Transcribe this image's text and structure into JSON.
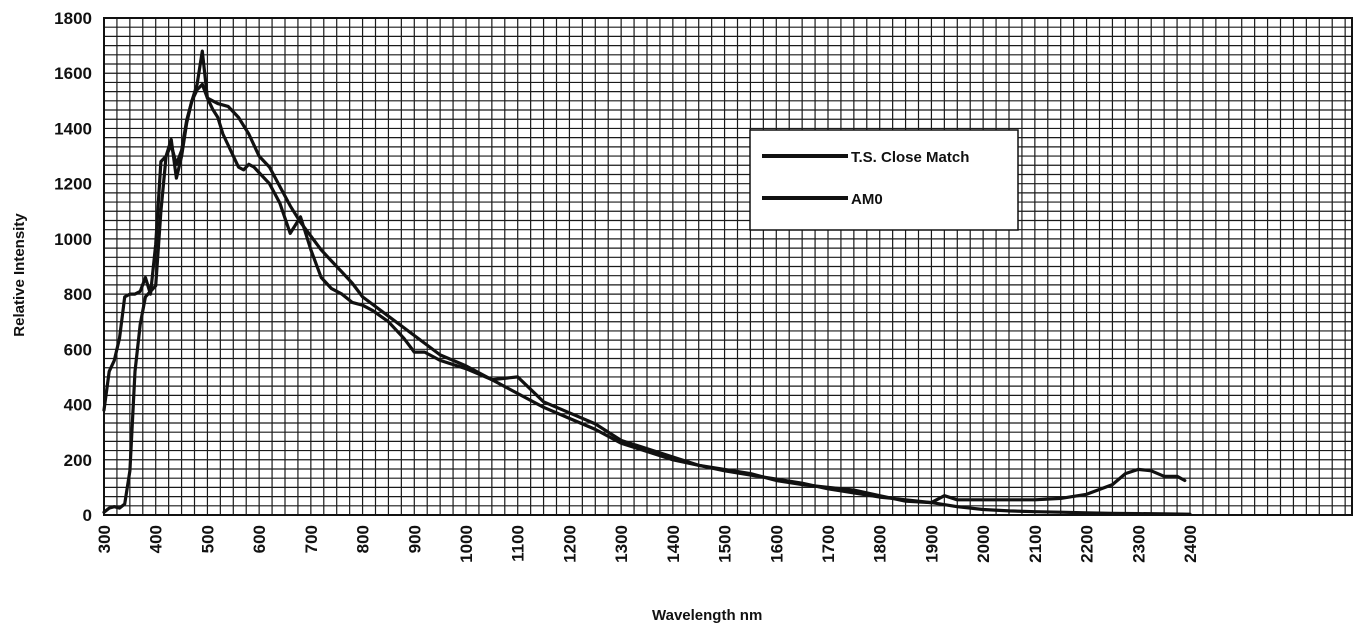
{
  "chart_data": {
    "type": "line",
    "xlabel": "Wavelength nm",
    "ylabel": "Relative Intensity",
    "xlim": [
      300,
      2400
    ],
    "ylim": [
      0,
      1800
    ],
    "x_ticks": [
      "300",
      "400",
      "500",
      "600",
      "700",
      "800",
      "900",
      "1000",
      "1100",
      "1200",
      "1300",
      "1400",
      "1500",
      "1600",
      "1700",
      "1800",
      "1900",
      "2000",
      "2100",
      "2200",
      "2300",
      "2400"
    ],
    "y_ticks": [
      "0",
      "200",
      "400",
      "600",
      "800",
      "1000",
      "1200",
      "1400",
      "1600",
      "1800"
    ],
    "grid": true,
    "legend_position": "top-right",
    "series": [
      {
        "name": "T.S. Close Match",
        "color": "#111111",
        "points": [
          [
            300,
            380
          ],
          [
            310,
            520
          ],
          [
            320,
            560
          ],
          [
            330,
            640
          ],
          [
            340,
            790
          ],
          [
            350,
            800
          ],
          [
            360,
            800
          ],
          [
            370,
            810
          ],
          [
            380,
            860
          ],
          [
            390,
            800
          ],
          [
            400,
            980
          ],
          [
            410,
            1280
          ],
          [
            420,
            1300
          ],
          [
            430,
            1360
          ],
          [
            440,
            1220
          ],
          [
            450,
            1300
          ],
          [
            460,
            1420
          ],
          [
            470,
            1500
          ],
          [
            480,
            1560
          ],
          [
            490,
            1680
          ],
          [
            500,
            1510
          ],
          [
            510,
            1470
          ],
          [
            520,
            1440
          ],
          [
            530,
            1380
          ],
          [
            540,
            1340
          ],
          [
            550,
            1300
          ],
          [
            560,
            1260
          ],
          [
            570,
            1250
          ],
          [
            580,
            1270
          ],
          [
            590,
            1260
          ],
          [
            600,
            1240
          ],
          [
            620,
            1200
          ],
          [
            640,
            1130
          ],
          [
            660,
            1020
          ],
          [
            680,
            1080
          ],
          [
            700,
            960
          ],
          [
            720,
            860
          ],
          [
            740,
            820
          ],
          [
            760,
            800
          ],
          [
            780,
            770
          ],
          [
            800,
            760
          ],
          [
            820,
            740
          ],
          [
            850,
            700
          ],
          [
            880,
            640
          ],
          [
            900,
            590
          ],
          [
            920,
            590
          ],
          [
            950,
            560
          ],
          [
            1000,
            530
          ],
          [
            1050,
            490
          ],
          [
            1100,
            500
          ],
          [
            1150,
            410
          ],
          [
            1200,
            370
          ],
          [
            1250,
            330
          ],
          [
            1300,
            270
          ],
          [
            1350,
            240
          ],
          [
            1400,
            210
          ],
          [
            1450,
            180
          ],
          [
            1500,
            165
          ],
          [
            1550,
            150
          ],
          [
            1600,
            125
          ],
          [
            1650,
            110
          ],
          [
            1700,
            100
          ],
          [
            1750,
            90
          ],
          [
            1800,
            70
          ],
          [
            1850,
            50
          ],
          [
            1900,
            45
          ],
          [
            1925,
            70
          ],
          [
            1950,
            55
          ],
          [
            2000,
            55
          ],
          [
            2050,
            55
          ],
          [
            2100,
            55
          ],
          [
            2150,
            60
          ],
          [
            2200,
            75
          ],
          [
            2250,
            110
          ],
          [
            2275,
            150
          ],
          [
            2300,
            165
          ],
          [
            2325,
            160
          ],
          [
            2350,
            140
          ],
          [
            2375,
            140
          ],
          [
            2390,
            125
          ]
        ]
      },
      {
        "name": "AM0",
        "color": "#111111",
        "points": [
          [
            300,
            10
          ],
          [
            310,
            25
          ],
          [
            320,
            30
          ],
          [
            330,
            25
          ],
          [
            340,
            40
          ],
          [
            350,
            160
          ],
          [
            360,
            520
          ],
          [
            370,
            690
          ],
          [
            380,
            790
          ],
          [
            390,
            810
          ],
          [
            400,
            830
          ],
          [
            410,
            1100
          ],
          [
            420,
            1300
          ],
          [
            430,
            1340
          ],
          [
            440,
            1270
          ],
          [
            450,
            1320
          ],
          [
            460,
            1430
          ],
          [
            470,
            1500
          ],
          [
            480,
            1540
          ],
          [
            490,
            1560
          ],
          [
            500,
            1510
          ],
          [
            520,
            1490
          ],
          [
            540,
            1480
          ],
          [
            560,
            1440
          ],
          [
            580,
            1380
          ],
          [
            600,
            1300
          ],
          [
            620,
            1260
          ],
          [
            640,
            1190
          ],
          [
            660,
            1120
          ],
          [
            680,
            1060
          ],
          [
            700,
            1010
          ],
          [
            720,
            960
          ],
          [
            740,
            920
          ],
          [
            760,
            880
          ],
          [
            780,
            840
          ],
          [
            800,
            790
          ],
          [
            850,
            720
          ],
          [
            900,
            650
          ],
          [
            950,
            580
          ],
          [
            1000,
            540
          ],
          [
            1050,
            490
          ],
          [
            1100,
            440
          ],
          [
            1150,
            390
          ],
          [
            1200,
            350
          ],
          [
            1250,
            310
          ],
          [
            1300,
            260
          ],
          [
            1350,
            230
          ],
          [
            1400,
            200
          ],
          [
            1450,
            180
          ],
          [
            1500,
            160
          ],
          [
            1550,
            145
          ],
          [
            1600,
            130
          ],
          [
            1650,
            115
          ],
          [
            1700,
            95
          ],
          [
            1750,
            80
          ],
          [
            1800,
            65
          ],
          [
            1850,
            55
          ],
          [
            1900,
            45
          ],
          [
            1950,
            30
          ],
          [
            2000,
            20
          ],
          [
            2050,
            15
          ],
          [
            2100,
            12
          ],
          [
            2150,
            10
          ],
          [
            2200,
            8
          ],
          [
            2250,
            6
          ],
          [
            2300,
            5
          ],
          [
            2350,
            4
          ],
          [
            2400,
            3
          ]
        ]
      }
    ]
  }
}
